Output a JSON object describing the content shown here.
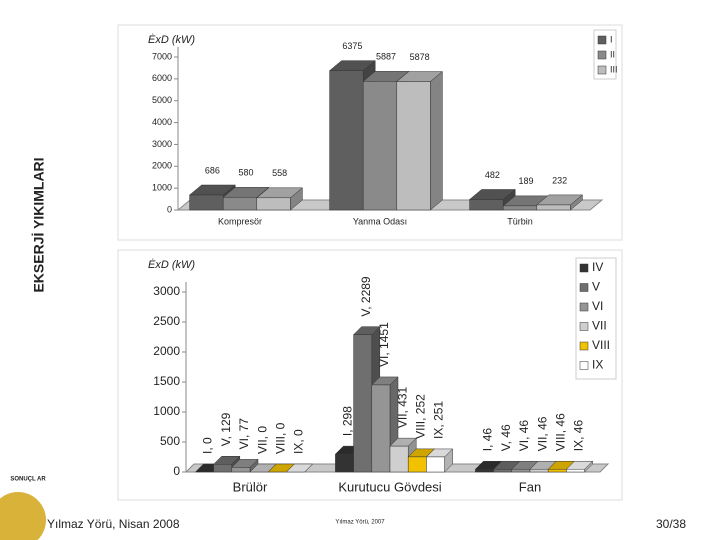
{
  "header": {
    "title": "EKSERJİ YIKIMLARI",
    "section": "SONUÇL AR"
  },
  "footer": {
    "author": "Yılmaz Yörü, Nisan 2008",
    "center": "Yılmaz Yörü, 2007",
    "page": "30/38"
  },
  "chart_data": [
    {
      "type": "bar3d",
      "y_label": "ĖxD (kW)",
      "legend": "right",
      "categories": [
        "Kompresör",
        "Yanma Odası",
        "Türbin"
      ],
      "series": [
        {
          "name": "I",
          "color": "#5f5f5f",
          "values": [
            686,
            6375,
            482
          ]
        },
        {
          "name": "II",
          "color": "#8a8a8a",
          "values": [
            580,
            5887,
            189
          ]
        },
        {
          "name": "III",
          "color": "#bdbdbd",
          "values": [
            558,
            5878,
            232
          ]
        }
      ],
      "ylim": [
        0,
        7000
      ],
      "yticks": [
        0,
        1000,
        2000,
        3000,
        4000,
        5000,
        6000,
        7000
      ]
    },
    {
      "type": "bar3d",
      "y_label": "ĖxD (kW)",
      "legend": "right",
      "label_rotation": "vertical",
      "categories": [
        "Brülör",
        "Kurutucu Gövdesi",
        "Fan"
      ],
      "series": [
        {
          "name": "IV",
          "color": "#333333",
          "values": [
            0,
            298,
            46
          ],
          "value_labels": [
            "I, 0",
            "I, 298",
            "I, 46"
          ]
        },
        {
          "name": "V",
          "color": "#6f6f6f",
          "values": [
            129,
            2289,
            46
          ],
          "value_labels": [
            "V, 129",
            "V, 2289",
            "V, 46"
          ]
        },
        {
          "name": "VI",
          "color": "#959595",
          "values": [
            77,
            1451,
            46
          ],
          "value_labels": [
            "VI, 77",
            "VI, 1451",
            "VI, 46"
          ]
        },
        {
          "name": "VII",
          "color": "#cfcfcf",
          "values": [
            0,
            431,
            46
          ],
          "value_labels": [
            "VII, 0",
            "VII, 431",
            "VII, 46"
          ]
        },
        {
          "name": "VIII",
          "color": "#f2c200",
          "values": [
            0,
            252,
            46
          ],
          "value_labels": [
            "VIII, 0",
            "VIII, 252",
            "VIII, 46"
          ]
        },
        {
          "name": "IX",
          "color": "#ffffff",
          "values": [
            0,
            251,
            46
          ],
          "value_labels": [
            "IX, 0",
            "IX, 251",
            "IX, 46"
          ]
        }
      ],
      "ylim": [
        0,
        3000
      ],
      "yticks": [
        0,
        500,
        1000,
        1500,
        2000,
        2500,
        3000
      ]
    }
  ]
}
